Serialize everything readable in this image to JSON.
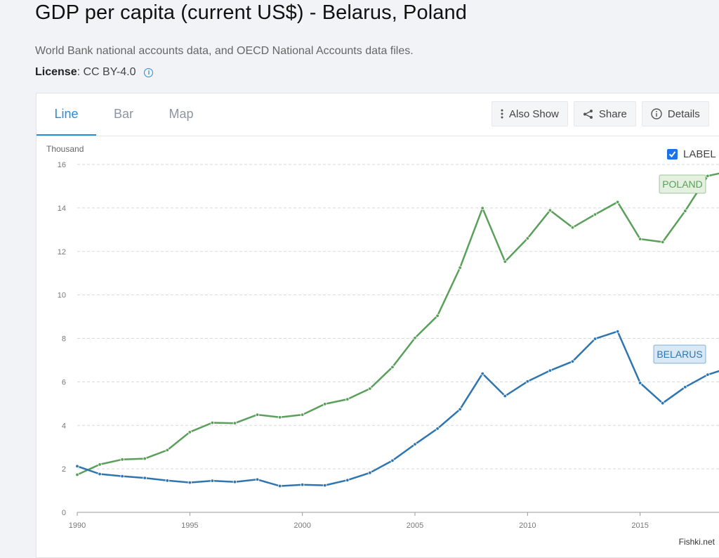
{
  "page": {
    "title": "GDP per capita (current US$) - Belarus, Poland",
    "source": "World Bank national accounts data, and OECD National Accounts data files.",
    "license_label": "License",
    "license_value": ": CC BY-4.0"
  },
  "tabs": [
    {
      "label": "Line",
      "active": true
    },
    {
      "label": "Bar",
      "active": false
    },
    {
      "label": "Map",
      "active": false
    }
  ],
  "actions": {
    "also_show": "Also Show",
    "share": "Share",
    "details": "Details"
  },
  "label_toggle": {
    "label": "LABEL",
    "checked": true
  },
  "watermark": "Fishki.net",
  "chart_data": {
    "type": "line",
    "ylabel": "Thousand",
    "ylim": [
      0,
      16
    ],
    "yticks": [
      0,
      2,
      4,
      6,
      8,
      10,
      12,
      14,
      16
    ],
    "xticks": [
      1990,
      1995,
      2000,
      2005,
      2010,
      2015
    ],
    "grid": true,
    "x": [
      1990,
      1991,
      1992,
      1993,
      1994,
      1995,
      1996,
      1997,
      1998,
      1999,
      2000,
      2001,
      2002,
      2003,
      2004,
      2005,
      2006,
      2007,
      2008,
      2009,
      2010,
      2011,
      2012,
      2013,
      2014,
      2015,
      2016,
      2017,
      2018,
      2019
    ],
    "series": [
      {
        "name": "POLAND",
        "color": "#5aa05a",
        "label_bg": "#e4f0e0",
        "values": [
          1.73,
          2.2,
          2.43,
          2.47,
          2.86,
          3.69,
          4.12,
          4.1,
          4.49,
          4.37,
          4.49,
          4.98,
          5.2,
          5.69,
          6.68,
          8.02,
          9.04,
          11.25,
          13.99,
          11.53,
          12.6,
          13.89,
          13.1,
          13.7,
          14.27,
          12.57,
          12.43,
          13.86,
          15.47,
          15.7
        ]
      },
      {
        "name": "BELARUS",
        "color": "#2f76b0",
        "label_bg": "#d8e8f4",
        "values": [
          2.12,
          1.76,
          1.66,
          1.58,
          1.46,
          1.37,
          1.45,
          1.4,
          1.51,
          1.21,
          1.27,
          1.24,
          1.48,
          1.82,
          2.38,
          3.13,
          3.85,
          4.74,
          6.38,
          5.35,
          6.02,
          6.52,
          6.94,
          7.98,
          8.32,
          5.95,
          5.02,
          5.76,
          6.33,
          6.66
        ]
      }
    ]
  }
}
